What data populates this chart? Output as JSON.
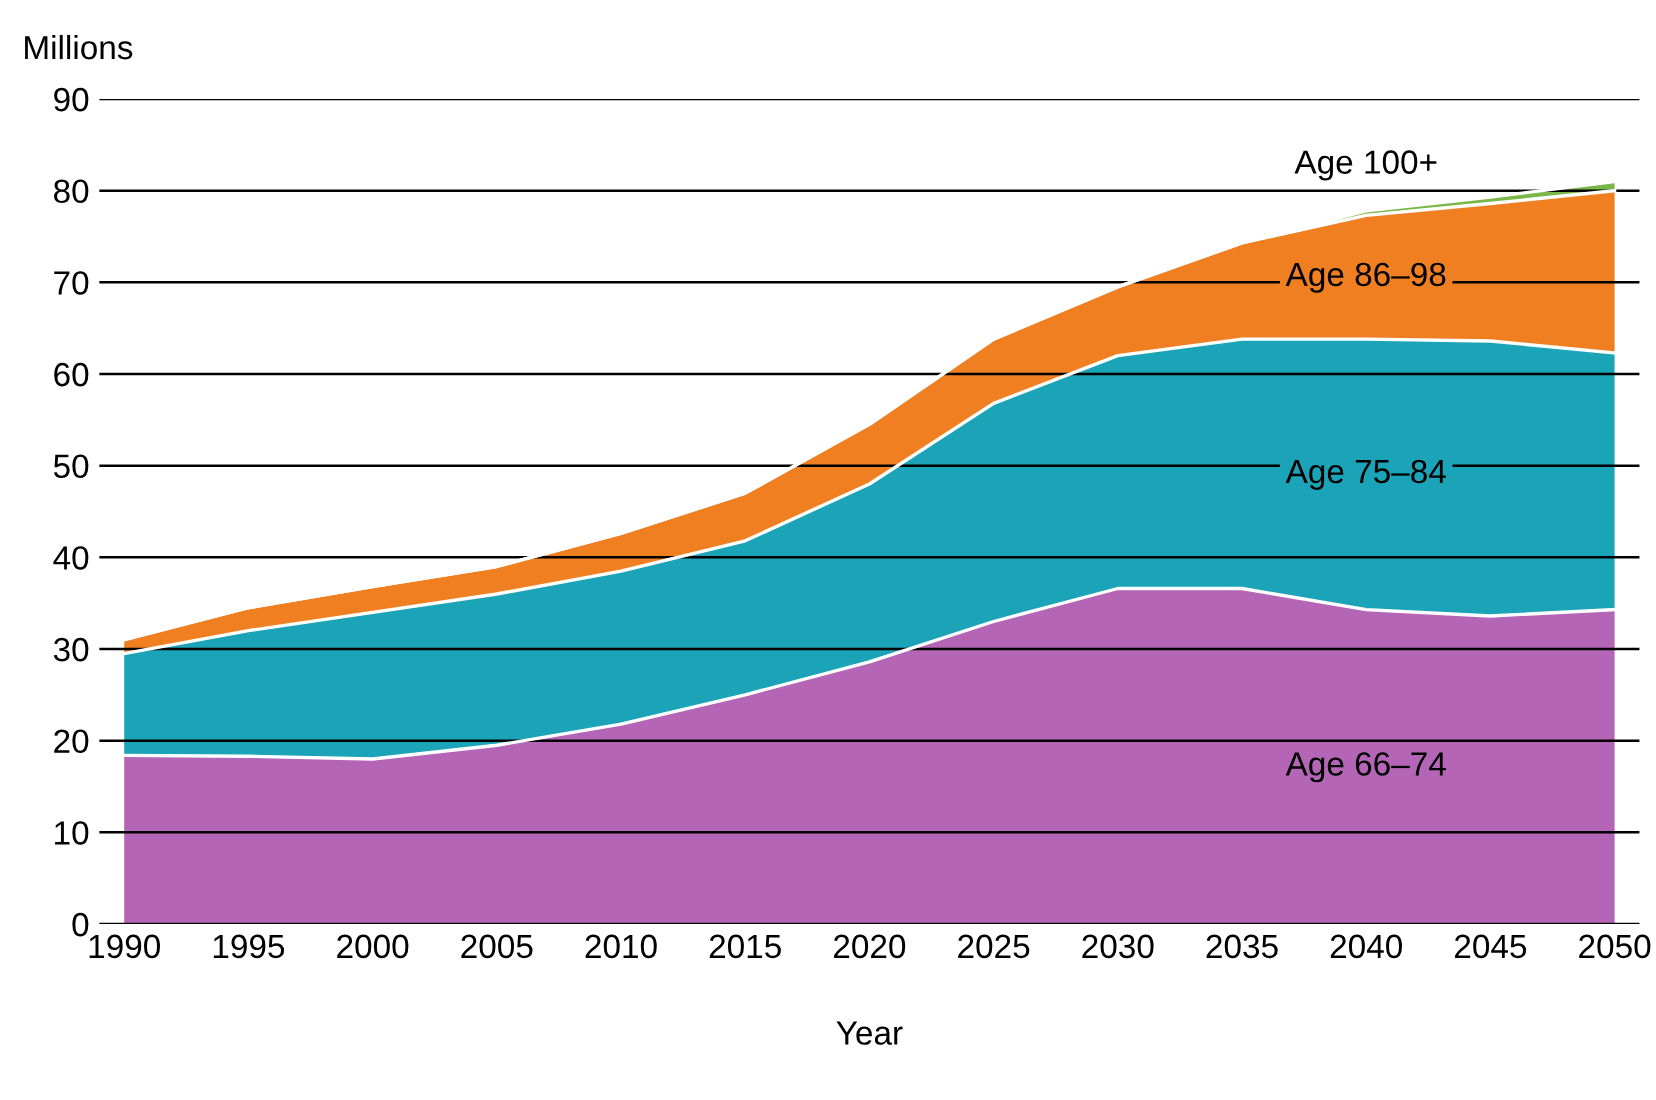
{
  "chart_data": {
    "type": "area",
    "stacked": true,
    "xlabel": "Year",
    "ylabel": "Millions",
    "x": [
      1990,
      1995,
      2000,
      2005,
      2010,
      2015,
      2020,
      2025,
      2030,
      2035,
      2040,
      2045,
      2050
    ],
    "xlim": [
      1989,
      2051
    ],
    "xticks": [
      1990,
      1995,
      2000,
      2005,
      2010,
      2015,
      2020,
      2025,
      2030,
      2035,
      2040,
      2045,
      2050
    ],
    "ylim": [
      0,
      90
    ],
    "yticks": [
      0,
      10,
      20,
      30,
      40,
      50,
      60,
      70,
      80,
      90
    ],
    "grid": "y",
    "legend": false,
    "series": [
      {
        "name": "Age 66–74",
        "color": "#b565b5",
        "values": [
          18.4,
          18.3,
          18,
          19.5,
          21.8,
          25,
          28.6,
          33,
          36.6,
          36.6,
          34.3,
          33.6,
          34.3
        ]
      },
      {
        "name": "Age 75–84",
        "color": "#1ba3b8",
        "values": [
          11.1,
          13.7,
          16,
          16.5,
          16.7,
          16.8,
          19.4,
          23.8,
          25.4,
          27.2,
          29.5,
          30,
          28
        ]
      },
      {
        "name": "Age 86–98",
        "color": "#f07f22",
        "values": [
          1.5,
          2.5,
          2.8,
          3,
          4.1,
          5.2,
          6.5,
          7,
          7.5,
          10.5,
          13.5,
          15,
          17.7
        ]
      },
      {
        "name": "Age 100+",
        "color": "#7ab648",
        "values": [
          0,
          0,
          0,
          0,
          0,
          0,
          0,
          0,
          0,
          0,
          0.5,
          0.7,
          1
        ]
      }
    ]
  }
}
